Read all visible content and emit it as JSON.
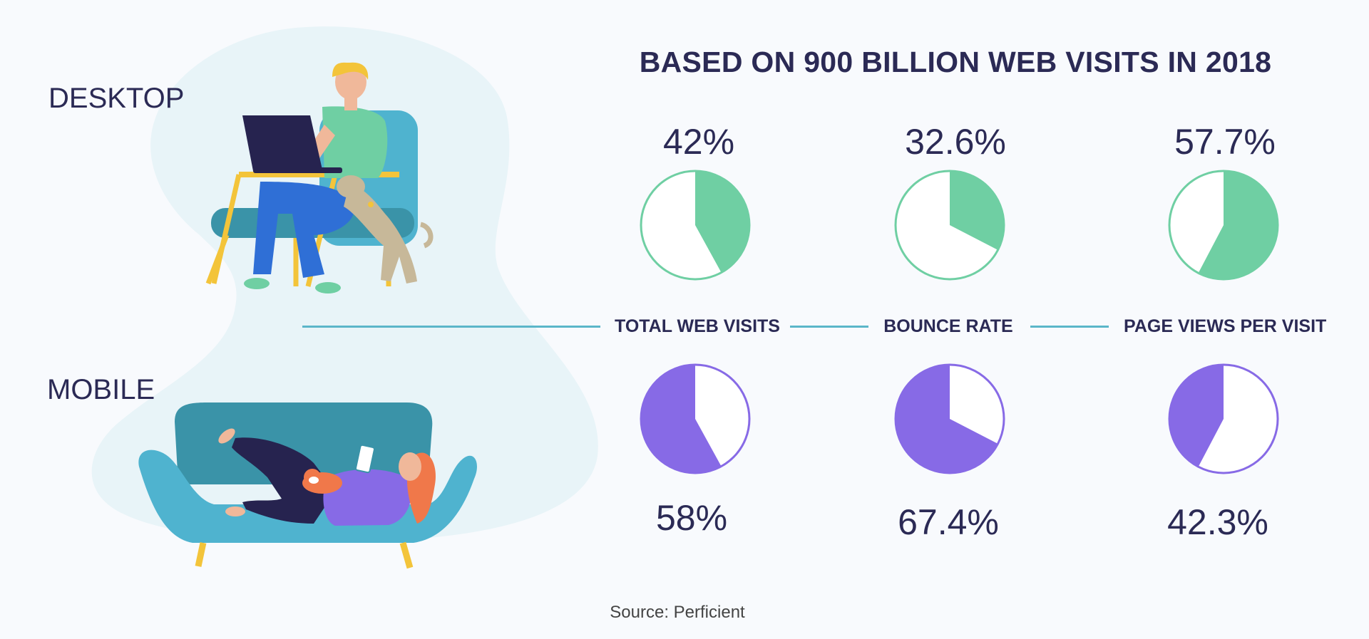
{
  "title": "BASED ON 900 BILLION WEB VISITS IN 2018",
  "segments": {
    "desktop": "DESKTOP",
    "mobile": "MOBILE"
  },
  "source": "Source: Perficient",
  "colors": {
    "desktop": "#6fcfa3",
    "mobile": "#876ae6",
    "connector": "#5bb6c9",
    "text": "#2b2a55",
    "blob": "#e8f4f8"
  },
  "chart_data": {
    "type": "pie",
    "title": "BASED ON 900 BILLION WEB VISITS IN 2018",
    "categories": [
      "TOTAL WEB VISITS",
      "BOUNCE RATE",
      "PAGE VIEWS PER VISIT"
    ],
    "series": [
      {
        "name": "DESKTOP",
        "values": [
          42,
          32.6,
          57.7
        ],
        "labels": [
          "42%",
          "32.6%",
          "57.7%"
        ]
      },
      {
        "name": "MOBILE",
        "values": [
          58,
          67.4,
          42.3
        ],
        "labels": [
          "58%",
          "67.4%",
          "42.3%"
        ]
      }
    ]
  },
  "illustration": {
    "desktop_icon": "person-on-armchair-with-laptop-and-dog",
    "mobile_icon": "person-lying-on-sofa-with-phone-and-cat"
  }
}
